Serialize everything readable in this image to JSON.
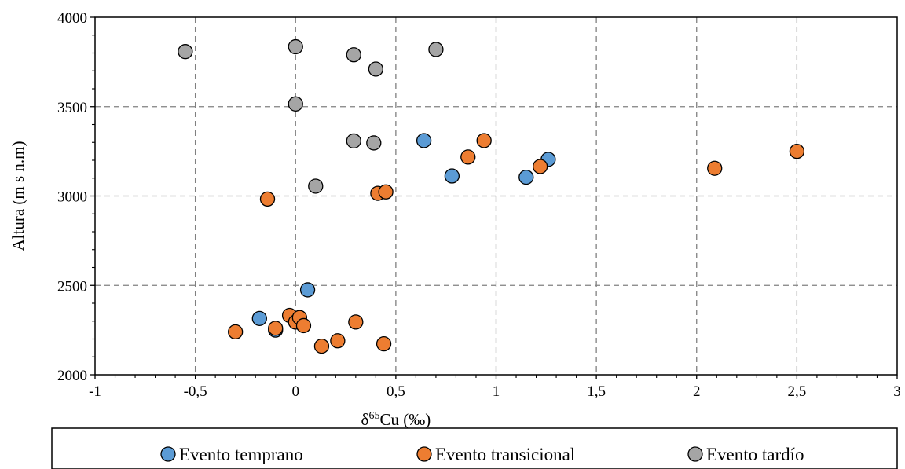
{
  "chart_data": {
    "type": "scatter",
    "title": "",
    "xlabel_prefix": "δ",
    "xlabel_sup": "65",
    "xlabel_rest": "Cu (‰)",
    "ylabel": "Altura (m s n.m)",
    "xlim": [
      -1,
      3
    ],
    "ylim": [
      2000,
      4000
    ],
    "x_ticks": [
      -1,
      -0.5,
      0,
      0.5,
      1,
      1.5,
      2,
      2.5,
      3
    ],
    "x_tick_labels": [
      "-1",
      "-0,5",
      "0",
      "0,5",
      "1",
      "1,5",
      "2",
      "2,5",
      "3"
    ],
    "y_ticks": [
      2000,
      2500,
      3000,
      3500,
      4000
    ],
    "y_tick_labels": [
      "2000",
      "2500",
      "3000",
      "3500",
      "4000"
    ],
    "grid": true,
    "legend_position": "bottom",
    "series": [
      {
        "name": "Evento temprano",
        "color": "#5b9bd5",
        "points": [
          {
            "x": 0.64,
            "y": 3310
          },
          {
            "x": 0.78,
            "y": 3112
          },
          {
            "x": 1.15,
            "y": 3105
          },
          {
            "x": 1.26,
            "y": 3205
          },
          {
            "x": 0.06,
            "y": 2475
          },
          {
            "x": -0.18,
            "y": 2315
          },
          {
            "x": -0.1,
            "y": 2250
          }
        ]
      },
      {
        "name": "Evento transicional",
        "color": "#ed7d31",
        "points": [
          {
            "x": -0.14,
            "y": 2983
          },
          {
            "x": 0.41,
            "y": 3015
          },
          {
            "x": 0.45,
            "y": 3023
          },
          {
            "x": 0.86,
            "y": 3218
          },
          {
            "x": 0.94,
            "y": 3310
          },
          {
            "x": 1.22,
            "y": 3165
          },
          {
            "x": 2.09,
            "y": 3155
          },
          {
            "x": 2.5,
            "y": 3250
          },
          {
            "x": -0.3,
            "y": 2240
          },
          {
            "x": -0.1,
            "y": 2260
          },
          {
            "x": -0.03,
            "y": 2332
          },
          {
            "x": 0.0,
            "y": 2295
          },
          {
            "x": 0.02,
            "y": 2320
          },
          {
            "x": 0.04,
            "y": 2275
          },
          {
            "x": 0.13,
            "y": 2160
          },
          {
            "x": 0.21,
            "y": 2190
          },
          {
            "x": 0.3,
            "y": 2295
          },
          {
            "x": 0.44,
            "y": 2173
          }
        ]
      },
      {
        "name": "Evento tardío",
        "color": "#a5a5a5",
        "points": [
          {
            "x": -0.55,
            "y": 3808
          },
          {
            "x": 0.0,
            "y": 3835
          },
          {
            "x": 0.29,
            "y": 3790
          },
          {
            "x": 0.4,
            "y": 3710
          },
          {
            "x": 0.7,
            "y": 3820
          },
          {
            "x": 0.0,
            "y": 3515
          },
          {
            "x": 0.29,
            "y": 3308
          },
          {
            "x": 0.39,
            "y": 3297
          },
          {
            "x": 0.1,
            "y": 3055
          }
        ]
      }
    ]
  }
}
